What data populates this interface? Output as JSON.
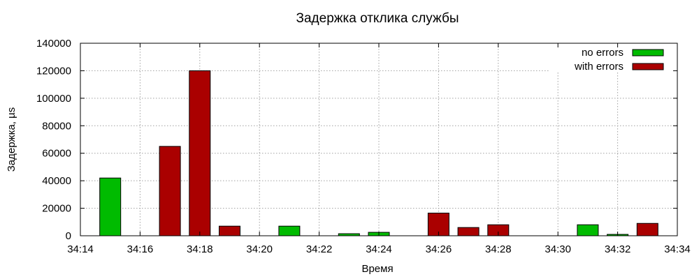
{
  "chart_data": {
    "type": "bar",
    "title": "Задержка отклика службы",
    "xlabel": "Время",
    "ylabel": "Задержка, µs",
    "x_min_minutes": 14,
    "x_max_minutes": 34,
    "xtick_labels": [
      "34:14",
      "34:16",
      "34:18",
      "34:20",
      "34:22",
      "34:24",
      "34:26",
      "34:28",
      "34:30",
      "34:32",
      "34:34"
    ],
    "ylim": [
      0,
      140000
    ],
    "ytick_labels": [
      "0",
      "20000",
      "40000",
      "60000",
      "80000",
      "100000",
      "120000",
      "140000"
    ],
    "grid": true,
    "legend_position": "top-right",
    "series": [
      {
        "name": "no errors",
        "color": "#00bb00",
        "points": [
          {
            "x": "34:15",
            "y": 42000
          },
          {
            "x": "34:21",
            "y": 7000
          },
          {
            "x": "34:23",
            "y": 1500
          },
          {
            "x": "34:24",
            "y": 2500
          },
          {
            "x": "34:31",
            "y": 8000
          },
          {
            "x": "34:32",
            "y": 1000
          }
        ]
      },
      {
        "name": "with errors",
        "color": "#aa0000",
        "points": [
          {
            "x": "34:17",
            "y": 65000
          },
          {
            "x": "34:18",
            "y": 120000
          },
          {
            "x": "34:19",
            "y": 7000
          },
          {
            "x": "34:26",
            "y": 16500
          },
          {
            "x": "34:27",
            "y": 6000
          },
          {
            "x": "34:28",
            "y": 8000
          },
          {
            "x": "34:33",
            "y": 9000
          }
        ]
      }
    ]
  }
}
